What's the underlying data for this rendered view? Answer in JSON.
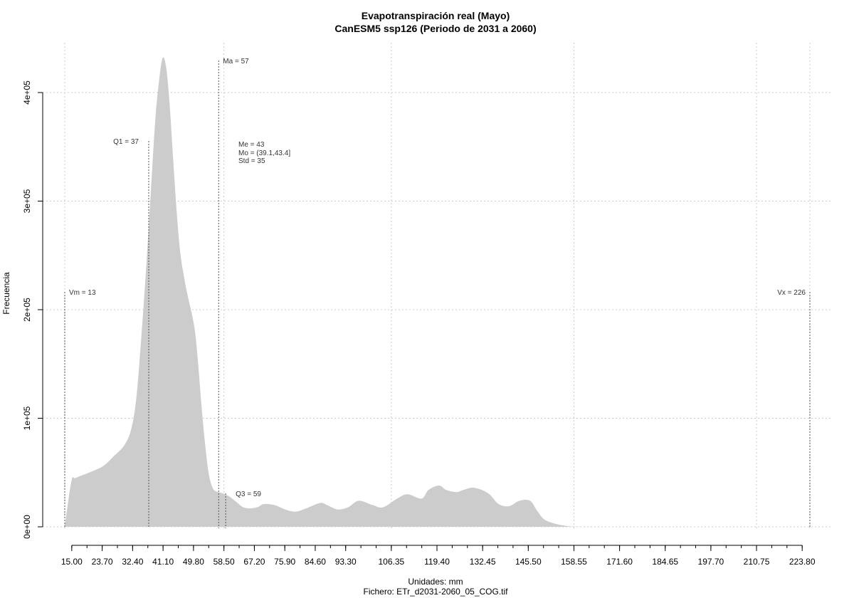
{
  "chart_data": {
    "type": "area",
    "title": "Evapotranspiración real (Mayo)",
    "subtitle": "CanESM5 ssp126 (Periodo de 2031 a 2060)",
    "xlabel": "Unidades: mm",
    "ylabel": "Frecuencia",
    "caption": "Fichero: ETr_d2031-2060_05_COG.tif",
    "xlim": [
      13,
      226
    ],
    "ylim": [
      0,
      400000
    ],
    "grid": true,
    "x_ticks": [
      15.0,
      23.7,
      32.4,
      41.1,
      49.8,
      58.5,
      67.2,
      75.9,
      84.6,
      93.3,
      106.35,
      119.4,
      132.45,
      145.5,
      158.55,
      171.6,
      184.65,
      197.7,
      210.75,
      223.8
    ],
    "x_tick_labels": [
      "15.00",
      "23.70",
      "32.40",
      "41.10",
      "49.80",
      "58.50",
      "67.20",
      "75.90",
      "84.60",
      "93.30",
      "106.35",
      "119.40",
      "132.45",
      "145.50",
      "158.55",
      "171.60",
      "184.65",
      "197.70",
      "210.75",
      "223.80"
    ],
    "y_ticks": [
      0,
      100000,
      200000,
      300000,
      400000
    ],
    "y_tick_labels": [
      "0e+00",
      "1e+05",
      "2e+05",
      "3e+05",
      "4e+05"
    ],
    "series": [
      {
        "x": [
          13.0,
          14.9,
          16.1,
          20.0,
          24.0,
          27.0,
          30.0,
          32.0,
          33.5,
          35.0,
          36.5,
          38.0,
          39.0,
          40.0,
          41.0,
          42.0,
          43.0,
          44.0,
          45.0,
          46.0,
          47.0,
          48.0,
          50.0,
          51.0,
          52.0,
          53.0,
          54.0,
          55.0,
          56.0,
          58.0,
          60.0,
          62.0,
          64.0,
          66.0,
          68.0,
          70.0,
          73.0,
          76.0,
          79.0,
          82.0,
          86.0,
          88.0,
          91.0,
          94.0,
          97.0,
          101.0,
          104.0,
          108.0,
          111.0,
          115.0,
          117.0,
          120.0,
          122.0,
          125.0,
          127.0,
          130.0,
          134.0,
          137.0,
          140.0,
          143.0,
          146.0,
          148.0,
          150.0,
          153.0,
          156.0,
          158.0,
          162.0,
          170.0,
          180.0,
          200.0,
          224.0
        ],
        "values": [
          0,
          42000,
          45000,
          50000,
          56000,
          65000,
          75000,
          90000,
          120000,
          180000,
          250000,
          330000,
          380000,
          412000,
          432000,
          423000,
          388000,
          338000,
          290000,
          253000,
          232000,
          215000,
          185000,
          155000,
          115000,
          80000,
          52000,
          38000,
          33000,
          31000,
          28000,
          23000,
          18000,
          17000,
          18000,
          21000,
          20000,
          16000,
          14000,
          17000,
          22000,
          20000,
          16000,
          18000,
          24000,
          20000,
          18000,
          26000,
          30000,
          26000,
          34000,
          38000,
          34000,
          32000,
          34000,
          36000,
          31000,
          21000,
          19000,
          24000,
          24000,
          15000,
          7000,
          3000,
          1000,
          300,
          50,
          0,
          0,
          0,
          0
        ]
      }
    ],
    "vlines": [
      {
        "x": 13,
        "label": "Vm = 13"
      },
      {
        "x": 226,
        "label": "Vx = 226"
      },
      {
        "x": 37,
        "label": "Q1 = 37"
      },
      {
        "x": 57,
        "label": "Ma = 57"
      },
      {
        "x": 59,
        "label": "Q3 = 59"
      }
    ],
    "stats_labels": [
      "Me = 43",
      "Mo = (39.1,43.4]",
      "Std = 35"
    ],
    "colors": {
      "fill": "#cccccc",
      "grid": "#cccccc",
      "vline": "#555555"
    }
  }
}
